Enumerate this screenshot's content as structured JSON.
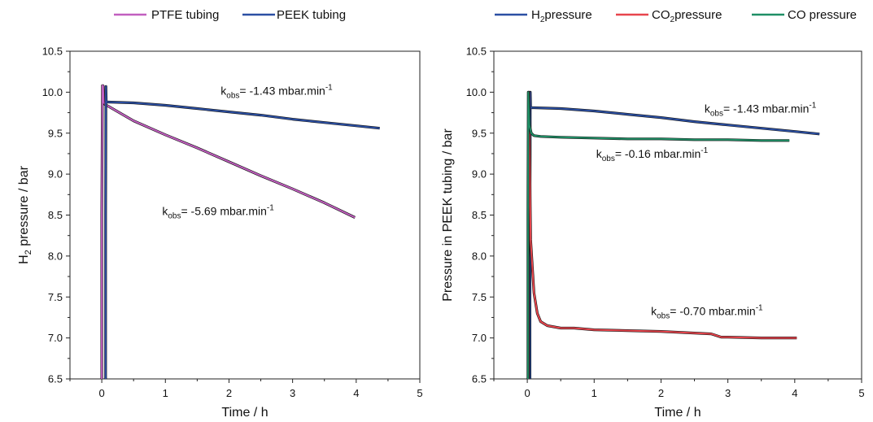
{
  "chart_data": [
    {
      "type": "line",
      "xlabel": "Time / h",
      "ylabel_main": "H",
      "ylabel_sub": "2",
      "ylabel_rest": " pressure / bar",
      "xlim": [
        -0.5,
        5
      ],
      "ylim": [
        6.5,
        10.5
      ],
      "xticks": [
        0,
        1,
        2,
        3,
        4,
        5
      ],
      "yticks": [
        6.5,
        7.0,
        7.5,
        8.0,
        8.5,
        9.0,
        9.5,
        10.0,
        10.5
      ],
      "grid": false,
      "legend_position": "top",
      "series": [
        {
          "name": "PTFE tubing",
          "color": "#c15fbf",
          "x": [
            0.0,
            0.0,
            0.01,
            0.02,
            0.03,
            0.05,
            0.1,
            0.5,
            1.0,
            1.5,
            2.0,
            2.5,
            3.0,
            3.5,
            3.98
          ],
          "y": [
            6.5,
            8.5,
            10.08,
            10.08,
            9.88,
            9.85,
            9.83,
            9.65,
            9.48,
            9.32,
            9.15,
            8.98,
            8.82,
            8.65,
            8.47
          ]
        },
        {
          "name": "PEEK tubing",
          "color": "#2b4fa3",
          "x": [
            0.06,
            0.06,
            0.065,
            0.07,
            0.1,
            0.5,
            1.0,
            1.5,
            2.0,
            2.5,
            3.0,
            3.5,
            4.0,
            4.37
          ],
          "y": [
            6.5,
            8.5,
            10.07,
            9.88,
            9.88,
            9.87,
            9.84,
            9.8,
            9.76,
            9.72,
            9.67,
            9.63,
            9.59,
            9.56
          ]
        }
      ],
      "annotations": [
        {
          "main": "k",
          "sub": "obs",
          "rest": "= -1.43 mbar.min",
          "sup": "-1",
          "x": 1.87,
          "y": 9.97
        },
        {
          "main": "k",
          "sub": "obs",
          "rest": "= -5.69 mbar.min",
          "sup": "-1",
          "x": 0.95,
          "y": 8.5
        }
      ]
    },
    {
      "type": "line",
      "xlabel": "Time / h",
      "ylabel": "Pressure in PEEK tubing / bar",
      "xlim": [
        -0.5,
        5
      ],
      "ylim": [
        6.5,
        10.5
      ],
      "xticks": [
        0,
        1,
        2,
        3,
        4,
        5
      ],
      "yticks": [
        6.5,
        7.0,
        7.5,
        8.0,
        8.5,
        9.0,
        9.5,
        10.0,
        10.5
      ],
      "grid": false,
      "legend_position": "top",
      "series": [
        {
          "name_main": "H",
          "name_sub": "2",
          "name_rest": "pressure",
          "color": "#2b4fa3",
          "x": [
            0.04,
            0.04,
            0.045,
            0.05,
            0.1,
            0.5,
            1.0,
            1.5,
            2.0,
            2.5,
            3.0,
            3.5,
            4.0,
            4.37
          ],
          "y": [
            6.5,
            8.5,
            10.0,
            9.81,
            9.81,
            9.8,
            9.77,
            9.73,
            9.69,
            9.64,
            9.6,
            9.56,
            9.52,
            9.49
          ]
        },
        {
          "name_main": "CO",
          "name_sub": "2",
          "name_rest": "pressure",
          "color": "#e8454d",
          "x": [
            0.02,
            0.02,
            0.025,
            0.05,
            0.1,
            0.15,
            0.2,
            0.3,
            0.5,
            0.7,
            1.0,
            1.5,
            2.0,
            2.5,
            2.75,
            2.9,
            3.0,
            3.5,
            4.03
          ],
          "y": [
            6.5,
            8.5,
            10.0,
            8.2,
            7.55,
            7.3,
            7.2,
            7.15,
            7.12,
            7.12,
            7.1,
            7.09,
            7.08,
            7.06,
            7.05,
            7.01,
            7.01,
            7.0,
            7.0
          ]
        },
        {
          "name": "CO pressure",
          "color": "#1f8f66",
          "x": [
            0.01,
            0.01,
            0.015,
            0.03,
            0.06,
            0.1,
            0.2,
            0.5,
            1.0,
            1.5,
            2.0,
            2.5,
            3.0,
            3.5,
            3.92
          ],
          "y": [
            6.5,
            8.5,
            10.0,
            9.6,
            9.5,
            9.47,
            9.46,
            9.45,
            9.44,
            9.43,
            9.43,
            9.42,
            9.42,
            9.41,
            9.41
          ]
        }
      ],
      "annotations": [
        {
          "main": "k",
          "sub": "obs",
          "rest": "= -1.43 mbar.min",
          "sup": "-1",
          "x": 2.65,
          "y": 9.75
        },
        {
          "main": "k",
          "sub": "obs",
          "rest": "= -0.16 mbar.min",
          "sup": "-1",
          "x": 1.03,
          "y": 9.2
        },
        {
          "main": "k",
          "sub": "obs",
          "rest": "= -0.70 mbar.min",
          "sup": "-1",
          "x": 1.85,
          "y": 7.28
        }
      ]
    }
  ]
}
